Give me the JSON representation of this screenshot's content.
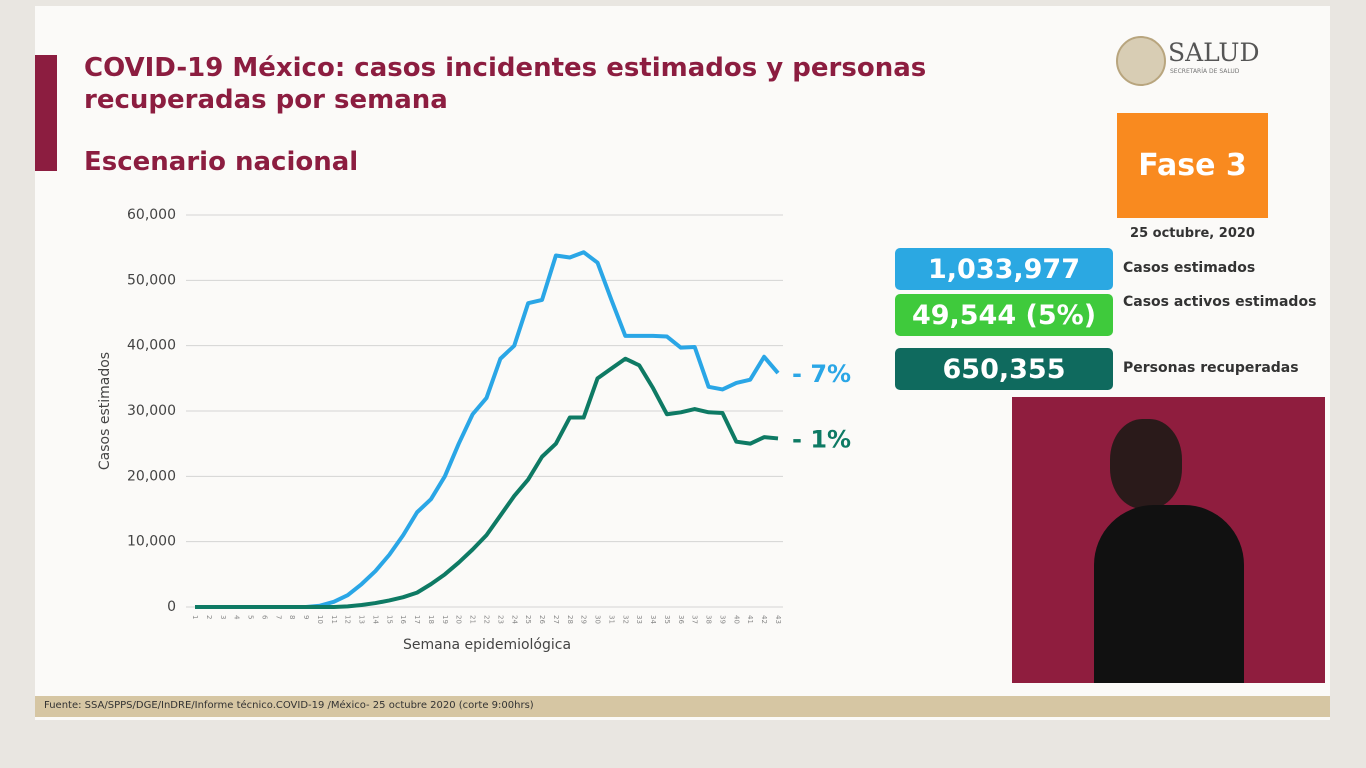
{
  "header": {
    "title": "COVID-19 México: casos incidentes estimados y personas recuperadas por semana",
    "subtitle": "Escenario nacional"
  },
  "logo": {
    "text": "SALUD",
    "subtext": "SECRETARÍA DE SALUD"
  },
  "phase": {
    "label": "Fase 3",
    "date": "25 octubre, 2020"
  },
  "stats": [
    {
      "value": "1,033,977",
      "label": "Casos estimados",
      "color": "#2ba8e2"
    },
    {
      "value": "49,544 (5%)",
      "label": "Casos activos estimados",
      "color": "#3fca3c"
    },
    {
      "value": "650,355",
      "label": "Personas recuperadas",
      "color": "#0f6a5e"
    }
  ],
  "source": "Fuente: SSA/SPPS/DGE/InDRE/Informe técnico.COVID-19 /México- 25 octubre 2020 (corte 9:00hrs)",
  "chart_data": {
    "type": "line",
    "x_label": "Semana epidemiológica",
    "y_label": "Casos estimados",
    "categories": [
      "1",
      "2",
      "3",
      "4",
      "5",
      "6",
      "7",
      "8",
      "9",
      "10",
      "11",
      "12",
      "13",
      "14",
      "15",
      "16",
      "17",
      "18",
      "19",
      "20",
      "21",
      "22",
      "23",
      "24",
      "25",
      "26",
      "27",
      "28",
      "29",
      "30",
      "31",
      "32",
      "33",
      "34",
      "35",
      "36",
      "37",
      "38",
      "39",
      "40",
      "41",
      "42",
      "43"
    ],
    "series": [
      {
        "color": "#2aa6e6",
        "values": [
          0,
          0,
          0,
          0,
          0,
          0,
          0,
          0,
          0,
          200,
          800,
          1800,
          3500,
          5500,
          8000,
          11000,
          14500,
          16500,
          20000,
          25000,
          29500,
          32000,
          38000,
          40000,
          46500,
          47000,
          53800,
          53500,
          54300,
          52700,
          47000,
          41500,
          41500,
          41500,
          41400,
          39700,
          39800,
          33700,
          33300,
          34300,
          34800,
          38300,
          35800
        ]
      },
      {
        "color": "#0e7a64",
        "values": [
          0,
          0,
          0,
          0,
          0,
          0,
          0,
          0,
          0,
          0,
          0,
          100,
          300,
          600,
          1000,
          1500,
          2200,
          3500,
          5000,
          6800,
          8800,
          11000,
          14000,
          17000,
          19500,
          23000,
          25000,
          29000,
          29000,
          35000,
          36500,
          38000,
          37000,
          33500,
          29500,
          29800,
          30300,
          29800,
          29700,
          25300,
          25000,
          26000,
          25800
        ]
      }
    ],
    "annotations": [
      "- 7%",
      "- 1%"
    ],
    "ylim": [
      0,
      60000
    ],
    "yticks": [
      0,
      {
        "value": 10000,
        "label": "10,000"
      },
      {
        "value": 20000,
        "label": "20,000"
      },
      {
        "value": 30000,
        "label": "30,000"
      },
      {
        "value": 40000,
        "label": "40,000"
      },
      {
        "value": 50000,
        "label": "50,000"
      },
      {
        "value": 60000,
        "label": "60,000"
      }
    ],
    "grid": true
  }
}
